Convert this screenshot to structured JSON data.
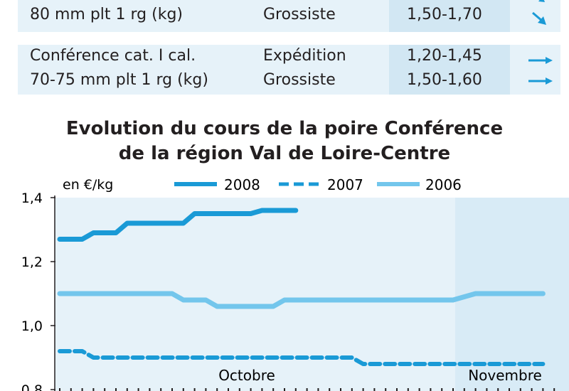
{
  "table": {
    "rows": [
      {
        "product_lines": [
          "",
          "80 mm plt 1 rg (kg)"
        ],
        "markets": [
          "",
          "Grossiste"
        ],
        "prices": [
          "",
          "1,50-1,70"
        ],
        "trends": [
          "down",
          "down"
        ]
      },
      {
        "product_lines": [
          "Conférence cat. I cal.",
          "70-75 mm plt 1 rg (kg)"
        ],
        "markets": [
          "Expédition",
          "Grossiste"
        ],
        "prices": [
          "1,20-1,45",
          "1,50-1,60"
        ],
        "trends": [
          "flat",
          "flat"
        ]
      }
    ],
    "colors": {
      "row_bg": "#e6f2f9",
      "price_bg": "#d2e7f3",
      "arrow": "#1a9ad6"
    }
  },
  "chart_data": {
    "type": "line",
    "title_lines": [
      "Evolution du cours de la poire Conférence",
      "de la région Val de Loire-Centre"
    ],
    "ylabel": "en €/kg",
    "xlabel": "",
    "ylim": [
      0.8,
      1.4
    ],
    "yticks": [
      0.8,
      1.0,
      1.2,
      1.4
    ],
    "ytick_labels": [
      "0,8",
      "1,0",
      "1,2",
      "1,4"
    ],
    "periods": [
      "Octobre",
      "Novembre"
    ],
    "x": [
      1,
      2,
      3,
      4,
      5,
      6,
      7,
      8,
      9,
      10,
      11,
      12,
      13,
      14,
      15,
      16,
      17,
      18,
      19,
      20,
      21,
      22,
      23,
      24,
      25,
      26,
      27,
      28,
      29,
      30,
      31,
      32,
      33,
      34,
      35,
      36,
      37,
      38,
      39,
      40,
      41,
      42,
      43,
      44,
      45
    ],
    "series": [
      {
        "name": "2008",
        "style": "solid-thick",
        "color": "#1a9ad6",
        "values": [
          1.27,
          1.27,
          1.27,
          1.29,
          1.29,
          1.29,
          1.32,
          1.32,
          1.32,
          1.32,
          1.32,
          1.32,
          1.35,
          1.35,
          1.35,
          1.35,
          1.35,
          1.35,
          1.36,
          1.36,
          1.36,
          1.36,
          null,
          null,
          null,
          null,
          null,
          null,
          null,
          null,
          null,
          null,
          null,
          null,
          null,
          null,
          null,
          null,
          null,
          null,
          null,
          null,
          null,
          null,
          null
        ]
      },
      {
        "name": "2007",
        "style": "dashed",
        "color": "#1a9ad6",
        "values": [
          0.92,
          0.92,
          0.92,
          0.9,
          0.9,
          0.9,
          0.9,
          0.9,
          0.9,
          0.9,
          0.9,
          0.9,
          0.9,
          0.9,
          0.9,
          0.9,
          0.9,
          0.9,
          0.9,
          0.9,
          0.9,
          0.9,
          0.9,
          0.9,
          0.9,
          0.9,
          0.9,
          0.88,
          0.88,
          0.88,
          0.88,
          0.88,
          0.88,
          0.88,
          0.88,
          0.88,
          0.88,
          0.88,
          0.88,
          0.88,
          0.88,
          0.88,
          0.88,
          0.88,
          0.88
        ]
      },
      {
        "name": "2006",
        "style": "solid-light",
        "color": "#73c6ec",
        "values": [
          1.1,
          1.1,
          1.1,
          1.1,
          1.1,
          1.1,
          1.1,
          1.1,
          1.1,
          1.1,
          1.1,
          1.08,
          1.08,
          1.08,
          1.06,
          1.06,
          1.06,
          1.06,
          1.06,
          1.06,
          1.08,
          1.08,
          1.08,
          1.08,
          1.08,
          1.08,
          1.08,
          1.08,
          1.08,
          1.08,
          1.08,
          1.08,
          1.08,
          1.08,
          1.08,
          1.08,
          1.09,
          1.1,
          1.1,
          1.1,
          1.1,
          1.1,
          1.1,
          1.1,
          1.1
        ]
      }
    ],
    "legend_position": "top",
    "grid": false,
    "colors": {
      "plot_bg": "#e6f2f9",
      "plot_bg_alt": "#d8ebf6"
    }
  }
}
